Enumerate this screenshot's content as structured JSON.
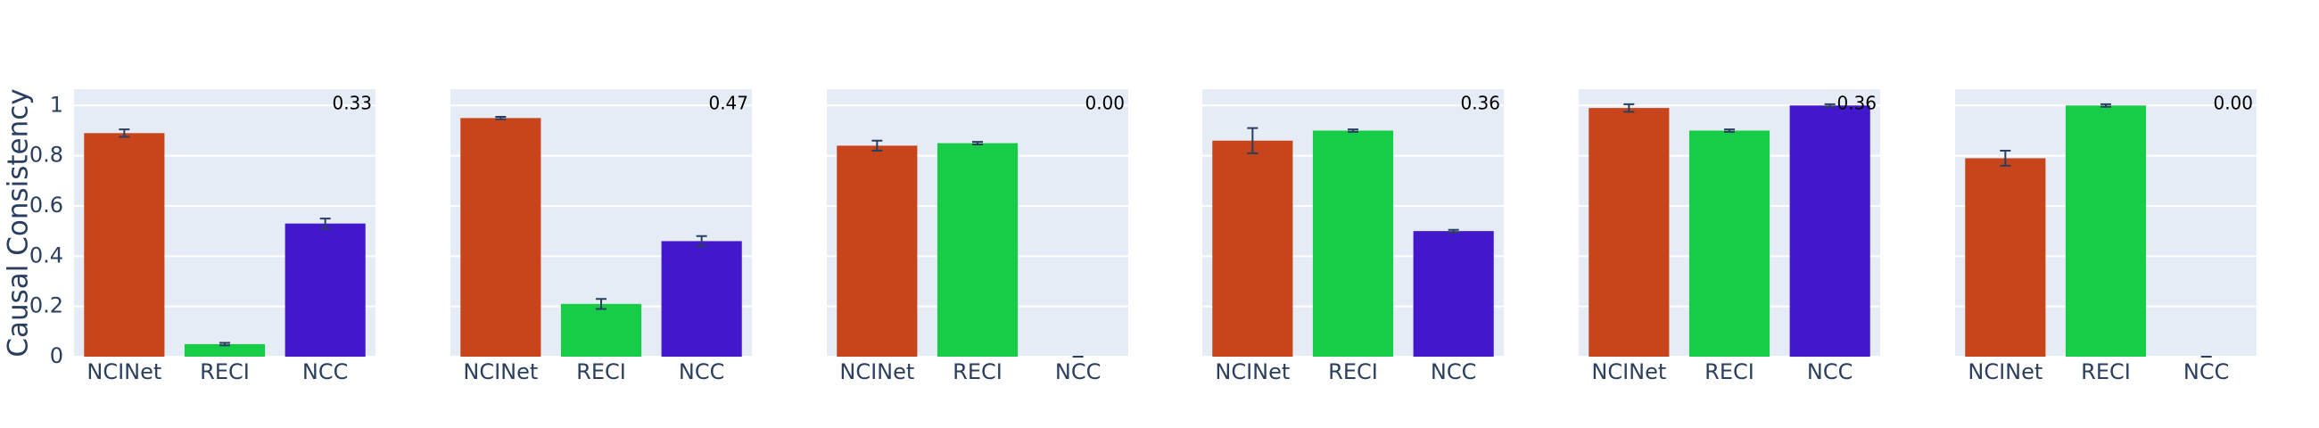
{
  "chart_data": [
    {
      "type": "bar",
      "y_title": "Causal Consistency",
      "categories": [
        "NCINet",
        "RECI",
        "NCC"
      ],
      "values": [
        0.89,
        0.05,
        0.53
      ],
      "errors": [
        0.015,
        0.005,
        0.02
      ],
      "colors": [
        "#c8441a",
        "#17cc46",
        "#4318cc"
      ],
      "annotation": "0.33",
      "ylim": [
        0,
        1.065
      ],
      "yticks": [
        0,
        0.2,
        0.4,
        0.6,
        0.8,
        1
      ],
      "grid": true
    },
    {
      "type": "bar",
      "categories": [
        "NCINet",
        "RECI",
        "NCC"
      ],
      "values": [
        0.95,
        0.21,
        0.46
      ],
      "errors": [
        0.005,
        0.02,
        0.02
      ],
      "colors": [
        "#c8441a",
        "#17cc46",
        "#4318cc"
      ],
      "annotation": "0.47",
      "ylim": [
        0,
        1.065
      ],
      "yticks": [
        0,
        0.2,
        0.4,
        0.6,
        0.8,
        1
      ],
      "grid": true
    },
    {
      "type": "bar",
      "categories": [
        "NCINet",
        "RECI",
        "NCC"
      ],
      "values": [
        0.84,
        0.85,
        0
      ],
      "errors": [
        0.02,
        0.005,
        0
      ],
      "colors": [
        "#c8441a",
        "#17cc46",
        "#4318cc"
      ],
      "annotation": "0.00",
      "ylim": [
        0,
        1.065
      ],
      "yticks": [
        0,
        0.2,
        0.4,
        0.6,
        0.8,
        1
      ],
      "grid": true
    },
    {
      "type": "bar",
      "categories": [
        "NCINet",
        "RECI",
        "NCC"
      ],
      "values": [
        0.86,
        0.9,
        0.5
      ],
      "errors": [
        0.05,
        0.005,
        0.005
      ],
      "colors": [
        "#c8441a",
        "#17cc46",
        "#4318cc"
      ],
      "annotation": "0.36",
      "ylim": [
        0,
        1.065
      ],
      "yticks": [
        0,
        0.2,
        0.4,
        0.6,
        0.8,
        1
      ],
      "grid": true
    },
    {
      "type": "bar",
      "categories": [
        "NCINet",
        "RECI",
        "NCC"
      ],
      "values": [
        0.99,
        0.9,
        1.0
      ],
      "errors": [
        0.015,
        0.005,
        0.005
      ],
      "colors": [
        "#c8441a",
        "#17cc46",
        "#4318cc"
      ],
      "annotation": "0.36",
      "ylim": [
        0,
        1.065
      ],
      "yticks": [
        0,
        0.2,
        0.4,
        0.6,
        0.8,
        1
      ],
      "grid": true
    },
    {
      "type": "bar",
      "categories": [
        "NCINet",
        "RECI",
        "NCC"
      ],
      "values": [
        0.79,
        1.0,
        0
      ],
      "errors": [
        0.03,
        0.005,
        0
      ],
      "colors": [
        "#c8441a",
        "#17cc46",
        "#4318cc"
      ],
      "annotation": "0.00",
      "ylim": [
        0,
        1.065
      ],
      "yticks": [
        0,
        0.2,
        0.4,
        0.6,
        0.8,
        1
      ],
      "grid": true
    }
  ]
}
